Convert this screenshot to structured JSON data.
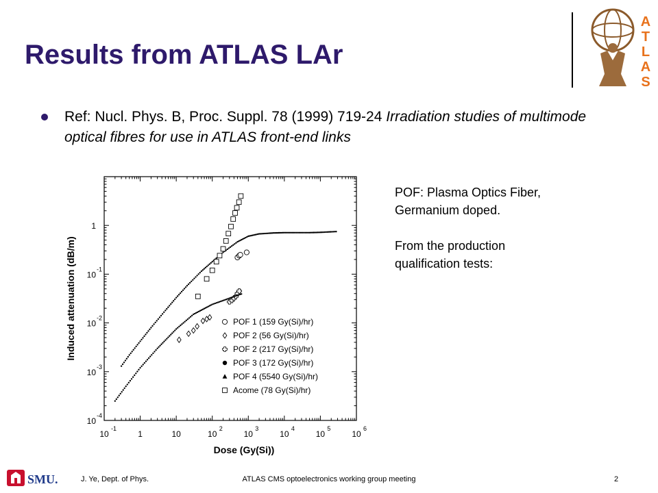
{
  "slide": {
    "title": "Results from ATLAS LAr",
    "bullet": {
      "ref": "Ref: Nucl. Phys. B, Proc. Suppl. 78 (1999) 719-24 ",
      "ref_italic": "Irradiation studies of multimode optical fibres for use in ATLAS front-end links"
    },
    "note_lines": [
      "POF: Plasma Optics Fiber,",
      "Germanium doped.",
      "",
      "From the production",
      "qualification tests:"
    ],
    "logo_letters": [
      "A",
      "T",
      "L",
      "A",
      "S"
    ]
  },
  "footer": {
    "logo_text": "SMU.",
    "author": "J. Ye, Dept. of Phys.",
    "meeting": "ATLAS CMS optoelectronics working group meeting",
    "page": "2"
  },
  "colors": {
    "title": "#2e1a6b",
    "bullet": "#2e1a6b",
    "smu_red": "#c8102e",
    "atlas_orange": "#e8721c"
  },
  "chart_data": {
    "type": "scatter",
    "xlabel": "Dose (Gy(Si))",
    "ylabel": "Induced attenuation (dB/m)",
    "xscale": "log",
    "yscale": "log",
    "xlim": [
      0.1,
      1000000
    ],
    "ylim": [
      0.0001,
      10
    ],
    "x_ticks": [
      {
        "base": "10",
        "exp": "-1"
      },
      {
        "base": "1",
        "exp": ""
      },
      {
        "base": "10",
        "exp": ""
      },
      {
        "base": "10",
        "exp": "2"
      },
      {
        "base": "10",
        "exp": "3"
      },
      {
        "base": "10",
        "exp": "4"
      },
      {
        "base": "10",
        "exp": "5"
      },
      {
        "base": "10",
        "exp": "6"
      }
    ],
    "y_ticks": [
      {
        "base": "1",
        "exp": ""
      },
      {
        "base": "10",
        "exp": "-1"
      },
      {
        "base": "10",
        "exp": "-2"
      },
      {
        "base": "10",
        "exp": "-3"
      },
      {
        "base": "10",
        "exp": "-4"
      }
    ],
    "series": [
      {
        "name": "POF 1 (159 Gy(Si)/hr)",
        "marker": "circle-open",
        "x": [
          500,
          560,
          600,
          900
        ],
        "y": [
          0.22,
          0.24,
          0.25,
          0.28
        ]
      },
      {
        "name": "POF 2 (56 Gy(Si)/hr)",
        "marker": "diamond-open",
        "x": [
          12,
          22,
          30,
          38,
          55,
          70,
          85
        ],
        "y": [
          0.0045,
          0.006,
          0.007,
          0.0085,
          0.011,
          0.012,
          0.013
        ]
      },
      {
        "name": "POF 2 (217 Gy(Si)/hr)",
        "marker": "plus-open",
        "x": [
          300,
          350,
          400,
          450,
          500,
          560
        ],
        "y": [
          0.027,
          0.029,
          0.032,
          0.035,
          0.04,
          0.045
        ]
      },
      {
        "name": "POF 3 (172 Gy(Si)/hr)",
        "marker": "dot",
        "x": [
          0.3,
          0.5,
          1,
          2,
          5,
          10,
          20,
          50,
          100,
          200,
          500,
          1000,
          2000,
          5000,
          10000,
          20000,
          50000,
          100000,
          300000
        ],
        "y": [
          0.0013,
          0.0022,
          0.0042,
          0.008,
          0.018,
          0.033,
          0.058,
          0.115,
          0.18,
          0.28,
          0.46,
          0.6,
          0.67,
          0.7,
          0.71,
          0.71,
          0.71,
          0.72,
          0.75
        ]
      },
      {
        "name": "POF 4 (5540 Gy(Si)/hr)",
        "marker": "dot",
        "x": [
          0.2,
          0.4,
          1,
          3,
          10,
          30,
          100,
          300,
          500,
          700
        ],
        "y": [
          0.00025,
          0.0005,
          0.0012,
          0.003,
          0.0075,
          0.015,
          0.024,
          0.032,
          0.037,
          0.04
        ]
      },
      {
        "name": "Acome (78 Gy(Si)/hr)",
        "marker": "square-open",
        "x": [
          40,
          70,
          100,
          130,
          160,
          200,
          240,
          280,
          330,
          380,
          430,
          480,
          550,
          620
        ],
        "y": [
          0.035,
          0.08,
          0.12,
          0.18,
          0.24,
          0.33,
          0.48,
          0.68,
          0.95,
          1.35,
          1.8,
          2.3,
          3.0,
          4.0
        ]
      }
    ]
  }
}
